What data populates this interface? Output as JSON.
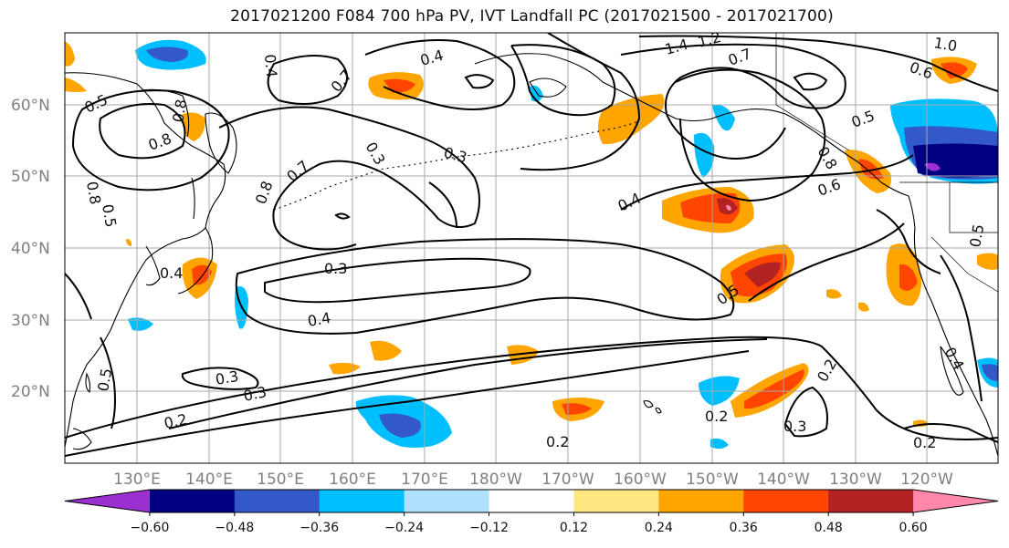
{
  "title": "2017021200 F084 700 hPa PV, IVT Landfall PC (2017021500 - 2017021700)",
  "lat_labels": [
    "60°N",
    "50°N",
    "40°N",
    "30°N",
    "20°N"
  ],
  "lon_labels": [
    "130°E",
    "140°E",
    "150°E",
    "160°E",
    "170°E",
    "180°W",
    "170°W",
    "160°W",
    "150°W",
    "140°W",
    "130°W",
    "120°W"
  ],
  "colorbar": {
    "ticks": [
      "−0.60",
      "−0.48",
      "−0.36",
      "−0.24",
      "−0.12",
      "0.12",
      "0.24",
      "0.36",
      "0.48",
      "0.60"
    ],
    "colors": [
      "#9b30d0",
      "#000080",
      "#3358c8",
      "#00bfff",
      "#b0e2ff",
      "#ffffff",
      "#ffe680",
      "#ffa500",
      "#ff4500",
      "#b22222",
      "#ff88aa"
    ]
  },
  "contour_labels": [
    "0.5",
    "0.8",
    "0.7",
    "0.4",
    "0.3",
    "0.4",
    "1.4",
    "1.2",
    "0.7",
    "1.0",
    "0.6",
    "0.5",
    "0.8",
    "0.6",
    "0.4",
    "0.5",
    "0.3",
    "0.4",
    "0.3",
    "0.3",
    "0.2",
    "0.2",
    "0.2",
    "0.3",
    "0.2",
    "0.2",
    "0.4",
    "0.5",
    "0.8",
    "0.7",
    "0.3",
    "0.5",
    "0.8",
    "0.8",
    "0.5",
    "0.4",
    "0.3"
  ]
}
